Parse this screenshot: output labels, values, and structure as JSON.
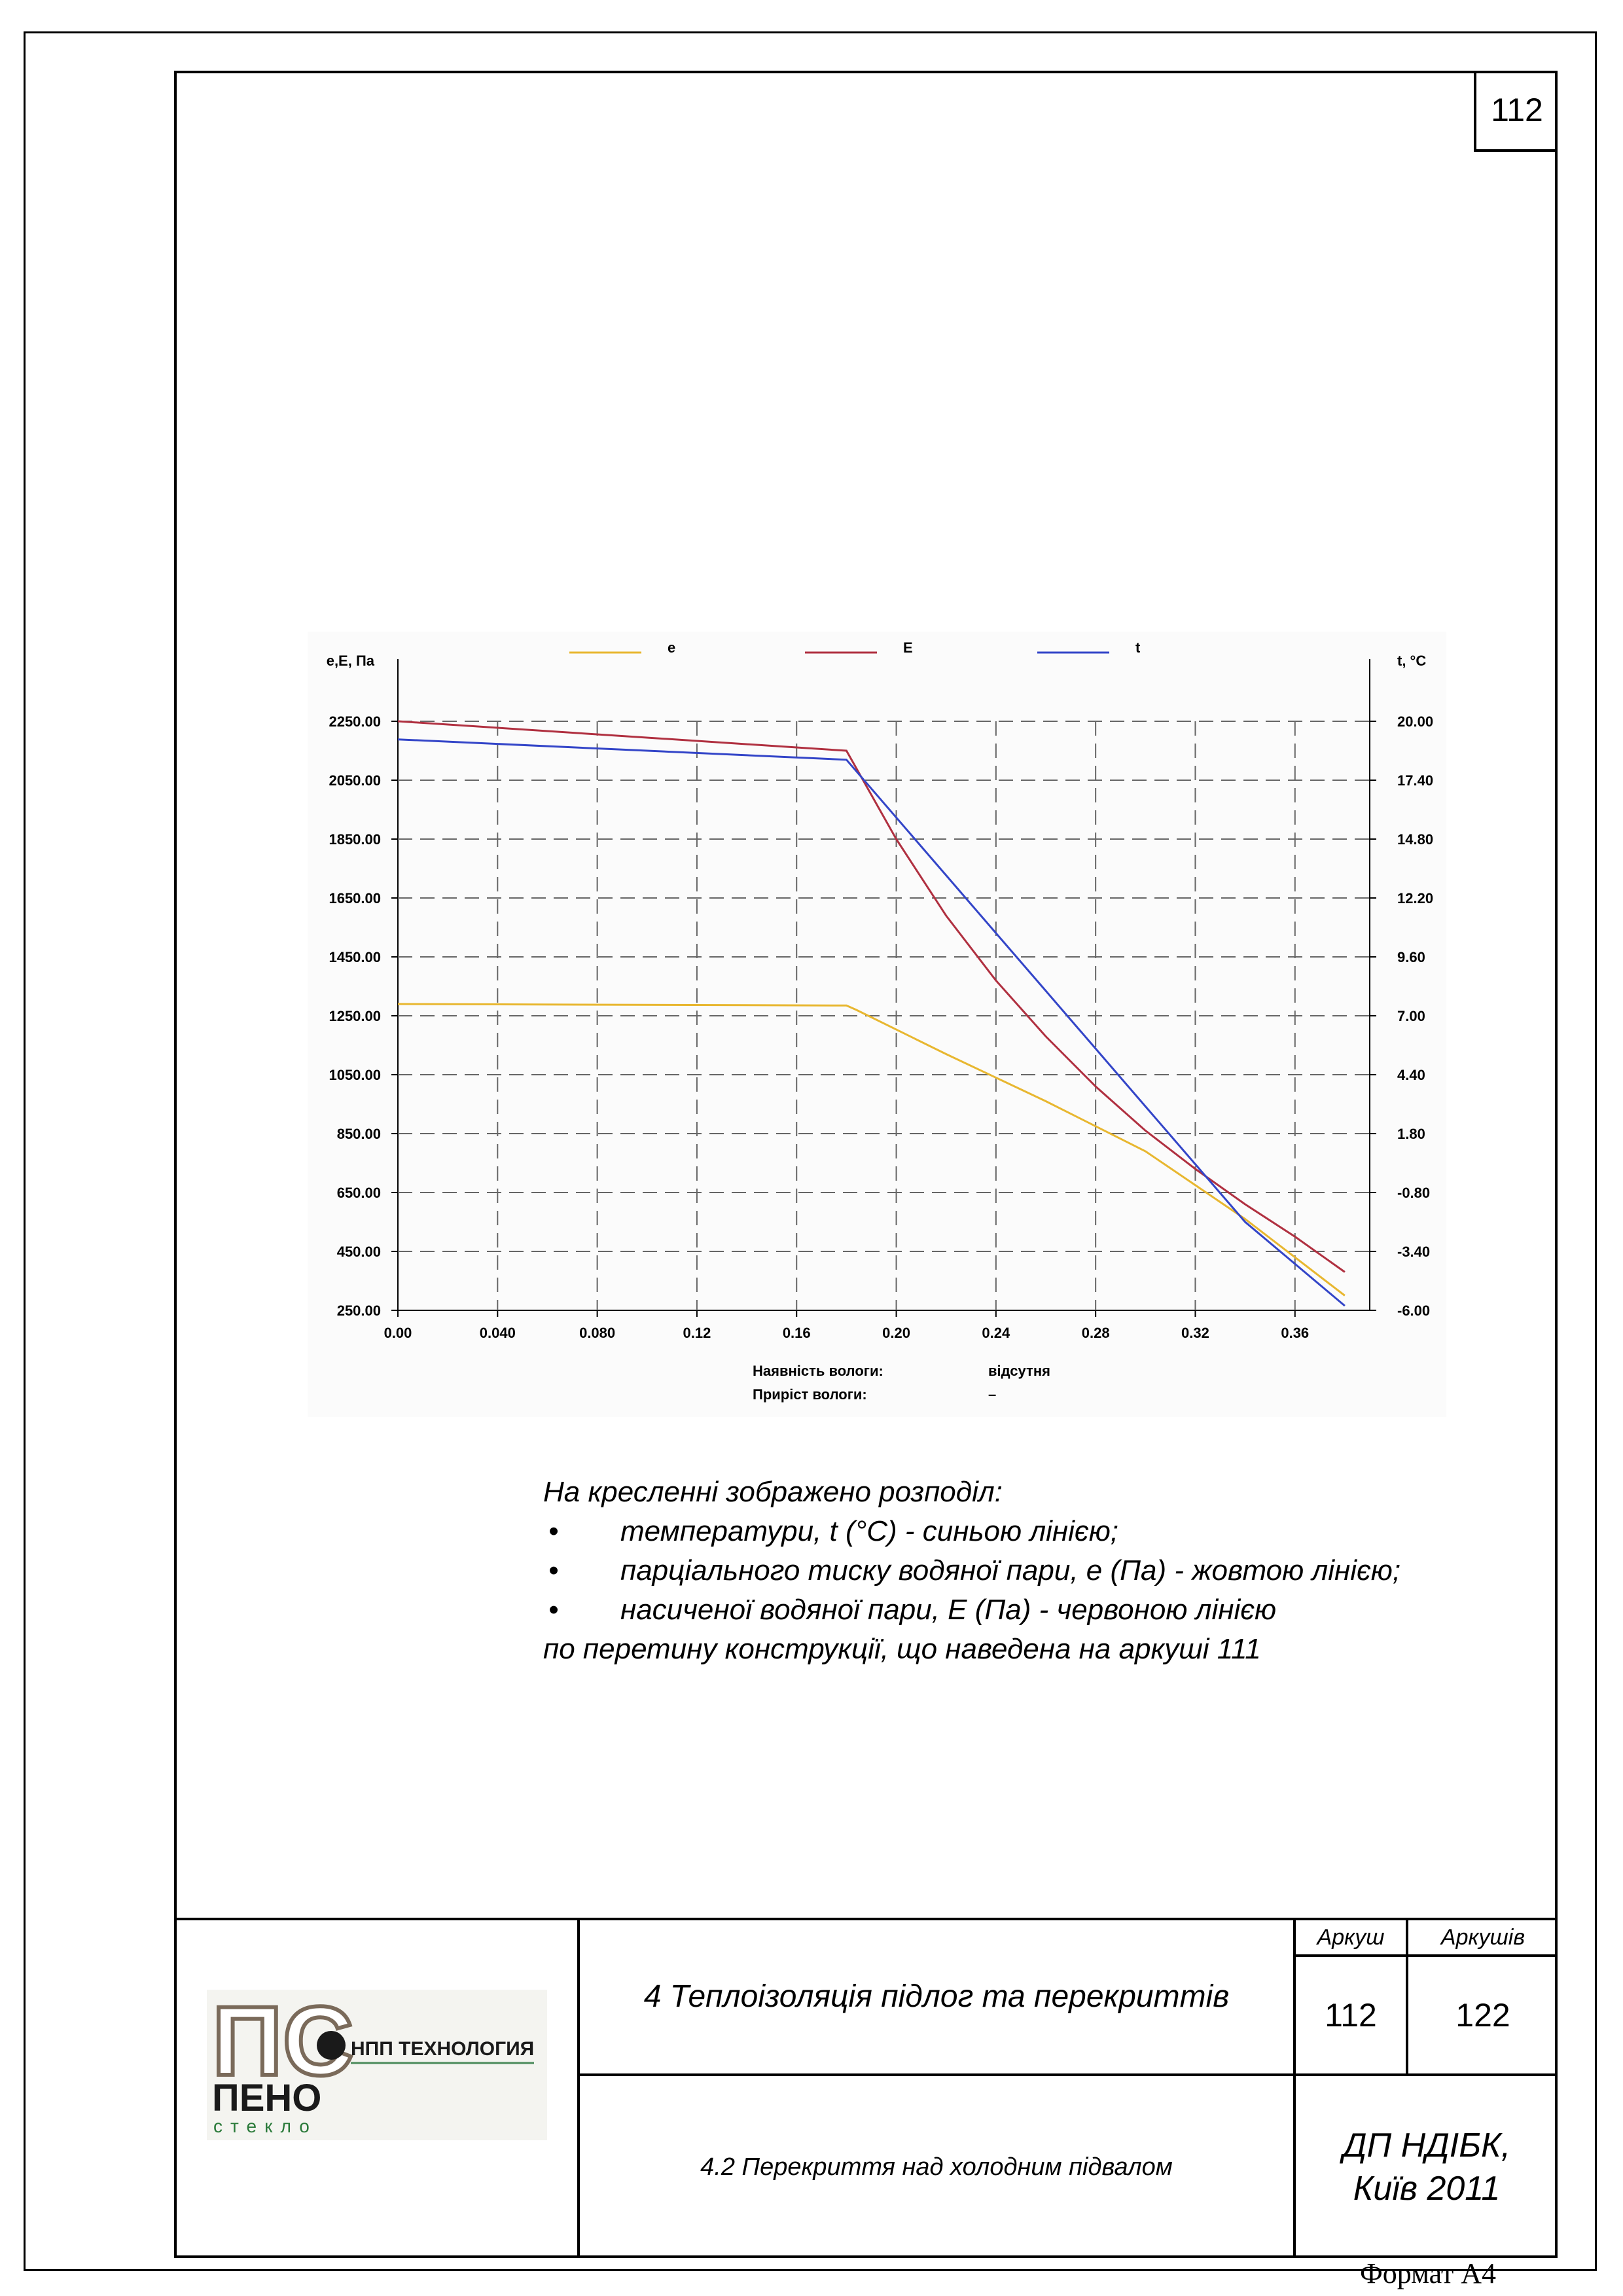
{
  "page_number": "112",
  "chart_data": {
    "type": "line",
    "legend": [
      "e",
      "E",
      "t"
    ],
    "legend_placement": "top",
    "ylabel_left": "e,E, Па",
    "ylabel_right": "t, °C",
    "x_ticks": [
      "0.00",
      "0.040",
      "0.080",
      "0.12",
      "0.16",
      "0.20",
      "0.24",
      "0.28",
      "0.32",
      "0.36"
    ],
    "y_left_ticks": [
      "2250.00",
      "2050.00",
      "1850.00",
      "1650.00",
      "1450.00",
      "1250.00",
      "1050.00",
      "850.00",
      "650.00",
      "450.00",
      "250.00"
    ],
    "y_right_ticks": [
      "20.00",
      "17.40",
      "14.80",
      "12.20",
      "9.60",
      "7.00",
      "4.40",
      "1.80",
      "-0.80",
      "-3.40",
      "-6.00"
    ],
    "xlim": [
      0,
      0.39
    ],
    "ylim_left": [
      250,
      2250
    ],
    "ylim_right": [
      -6,
      20
    ],
    "grid": true,
    "series": [
      {
        "name": "e",
        "color": "#e8b730",
        "axis": "left",
        "x": [
          0,
          0.18,
          0.184,
          0.22,
          0.26,
          0.3,
          0.34,
          0.38
        ],
        "y": [
          1290,
          1285,
          1270,
          1120,
          960,
          790,
          560,
          300
        ]
      },
      {
        "name": "E",
        "color": "#b03040",
        "axis": "left",
        "x": [
          0,
          0.18,
          0.2,
          0.22,
          0.24,
          0.26,
          0.28,
          0.3,
          0.32,
          0.34,
          0.36,
          0.38
        ],
        "y": [
          2250,
          2150,
          1850,
          1590,
          1370,
          1180,
          1010,
          860,
          730,
          610,
          500,
          380
        ]
      },
      {
        "name": "t",
        "color": "#3345c8",
        "axis": "right",
        "x": [
          0,
          0.18,
          0.22,
          0.26,
          0.3,
          0.34,
          0.38
        ],
        "y": [
          19.2,
          18.3,
          13.2,
          8.1,
          3.0,
          -2.1,
          -5.8
        ]
      }
    ],
    "annotations": [
      {
        "label": "Наявність вологи:",
        "value": "відсутня"
      },
      {
        "label": "Приріст вологи:",
        "value": "–"
      }
    ]
  },
  "description": {
    "intro": "На кресленні зображено розподіл:",
    "items": [
      "температури, t (°С) - синьою лінією;",
      "парціального тиску водяної пари, е (Па) - жовтою лінією;",
      "насиченої водяної пари, Е (Па) - червоною лінією"
    ],
    "outro": "по перетину конструкції, що наведена на аркуші 111"
  },
  "title_block": {
    "logo": {
      "top_text": "НПП ТЕХНОЛОГИЯ",
      "brand": "ПЕНО",
      "brand_sub": "стекло",
      "letters": "ПС"
    },
    "title": "4 Теплоізоляція підлог та перекриттів",
    "subtitle": "4.2 Перекриття над холодним підвалом",
    "sheet_label": "Аркуш",
    "sheets_label": "Аркушів",
    "sheet": "112",
    "sheets": "122",
    "org_line1": "ДП НДІБК,",
    "org_line2": "Київ 2011"
  },
  "format": "Формат А4"
}
